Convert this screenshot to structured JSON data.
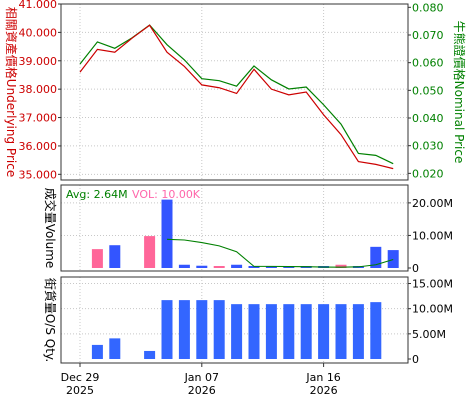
{
  "chart_data": [
    {
      "type": "line",
      "title": "",
      "y_left_label": "相關資產價格Underlying Price",
      "y_right_label": "牛熊證價格Nominal Price",
      "y_left_ticks": [
        "35.000",
        "36.000",
        "37.000",
        "38.000",
        "39.000",
        "40.000",
        "41.000"
      ],
      "y_right_ticks": [
        "0.020",
        "0.030",
        "0.040",
        "0.050",
        "0.060",
        "0.070",
        "0.080"
      ],
      "ylim_left": [
        34.8,
        41.0
      ],
      "ylim_right": [
        0.0176,
        0.0812
      ],
      "grid": true,
      "colors": {
        "underlying": "#cc0000",
        "nominal": "#008000",
        "left_axis_text": "#cc0000",
        "right_axis_text": "#008000"
      },
      "series": [
        {
          "key": "underlying",
          "values": [
            38.6,
            39.4,
            39.3,
            39.8,
            40.25,
            39.3,
            38.8,
            38.15,
            38.05,
            37.85,
            38.7,
            38.0,
            37.8,
            37.9,
            37.1,
            36.4,
            35.45,
            35.35,
            35.2
          ]
        },
        {
          "key": "nominal",
          "values": [
            0.0595,
            0.0675,
            0.0652,
            0.069,
            0.0736,
            0.0665,
            0.061,
            0.0542,
            0.0535,
            0.0515,
            0.0588,
            0.0538,
            0.0505,
            0.0512,
            0.0448,
            0.0378,
            0.0272,
            0.0265,
            0.0235
          ]
        }
      ]
    },
    {
      "type": "bar",
      "title": "",
      "y_label": "成交量Volume",
      "y_ticks": [
        "0",
        "10.00M",
        "20.00M"
      ],
      "ylim": [
        0,
        21500000
      ],
      "grid": true,
      "legend": {
        "avg_label": "Avg: 2.64M",
        "vol_label": "VOL: 10.00K"
      },
      "colors": {
        "up": "#3355ff",
        "down": "#ff6699",
        "avg_line": "#008000",
        "avg_text": "#008000",
        "vol_text": "#ff66aa"
      },
      "values": [
        0,
        5800000,
        7000000,
        0,
        9800000,
        21000000,
        1000000,
        700000,
        500000,
        1000000,
        300000,
        300000,
        200000,
        200000,
        100000,
        1000000,
        200000,
        6500000,
        5500000
      ],
      "bar_colors": [
        "up",
        "down",
        "up",
        "up",
        "down",
        "up",
        "up",
        "up",
        "down",
        "up",
        "up",
        "up",
        "up",
        "up",
        "up",
        "down",
        "up",
        "up",
        "up"
      ],
      "avg_line_values": [
        null,
        null,
        null,
        null,
        null,
        8800000,
        8600000,
        7800000,
        6800000,
        5000000,
        500000,
        500000,
        450000,
        400000,
        300000,
        250000,
        350000,
        1000000,
        2600000
      ]
    },
    {
      "type": "bar",
      "title": "",
      "y_label": "街貨量O/S Qty.",
      "y_ticks": [
        "0",
        "5.00M",
        "10.00M",
        "15.00M"
      ],
      "ylim": [
        0,
        15500000
      ],
      "grid": true,
      "colors": {
        "bar": "#3366ff"
      },
      "values": [
        0,
        2800000,
        4100000,
        0,
        1600000,
        11700000,
        11700000,
        11700000,
        11700000,
        10900000,
        10900000,
        10900000,
        10900000,
        10900000,
        10900000,
        10900000,
        10900000,
        11300000,
        0
      ]
    }
  ],
  "x_axis": {
    "ticks": [
      {
        "label": "Dec 29",
        "year": "2025",
        "index": 0
      },
      {
        "label": "Jan 07",
        "year": "2026",
        "index": 7
      },
      {
        "label": "Jan 16",
        "year": "2026",
        "index": 14
      }
    ]
  }
}
